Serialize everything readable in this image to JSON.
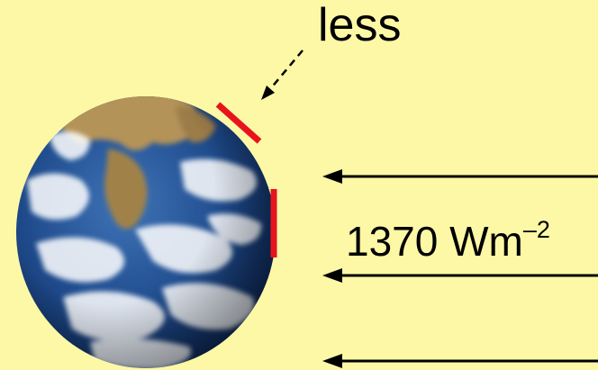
{
  "labels": {
    "less": "less",
    "flux_value": "1370 Wm",
    "flux_exponent": "–2"
  },
  "colors": {
    "background": "#fdf8a6",
    "marker": "#e8141c",
    "arrow": "#000000",
    "ocean": "#1d3f7e",
    "cloud": "#ffffff",
    "land": "#b08a52"
  },
  "elements": {
    "earth": "earth-globe-image",
    "incoming_arrows": 3,
    "surface_markers": 2
  }
}
